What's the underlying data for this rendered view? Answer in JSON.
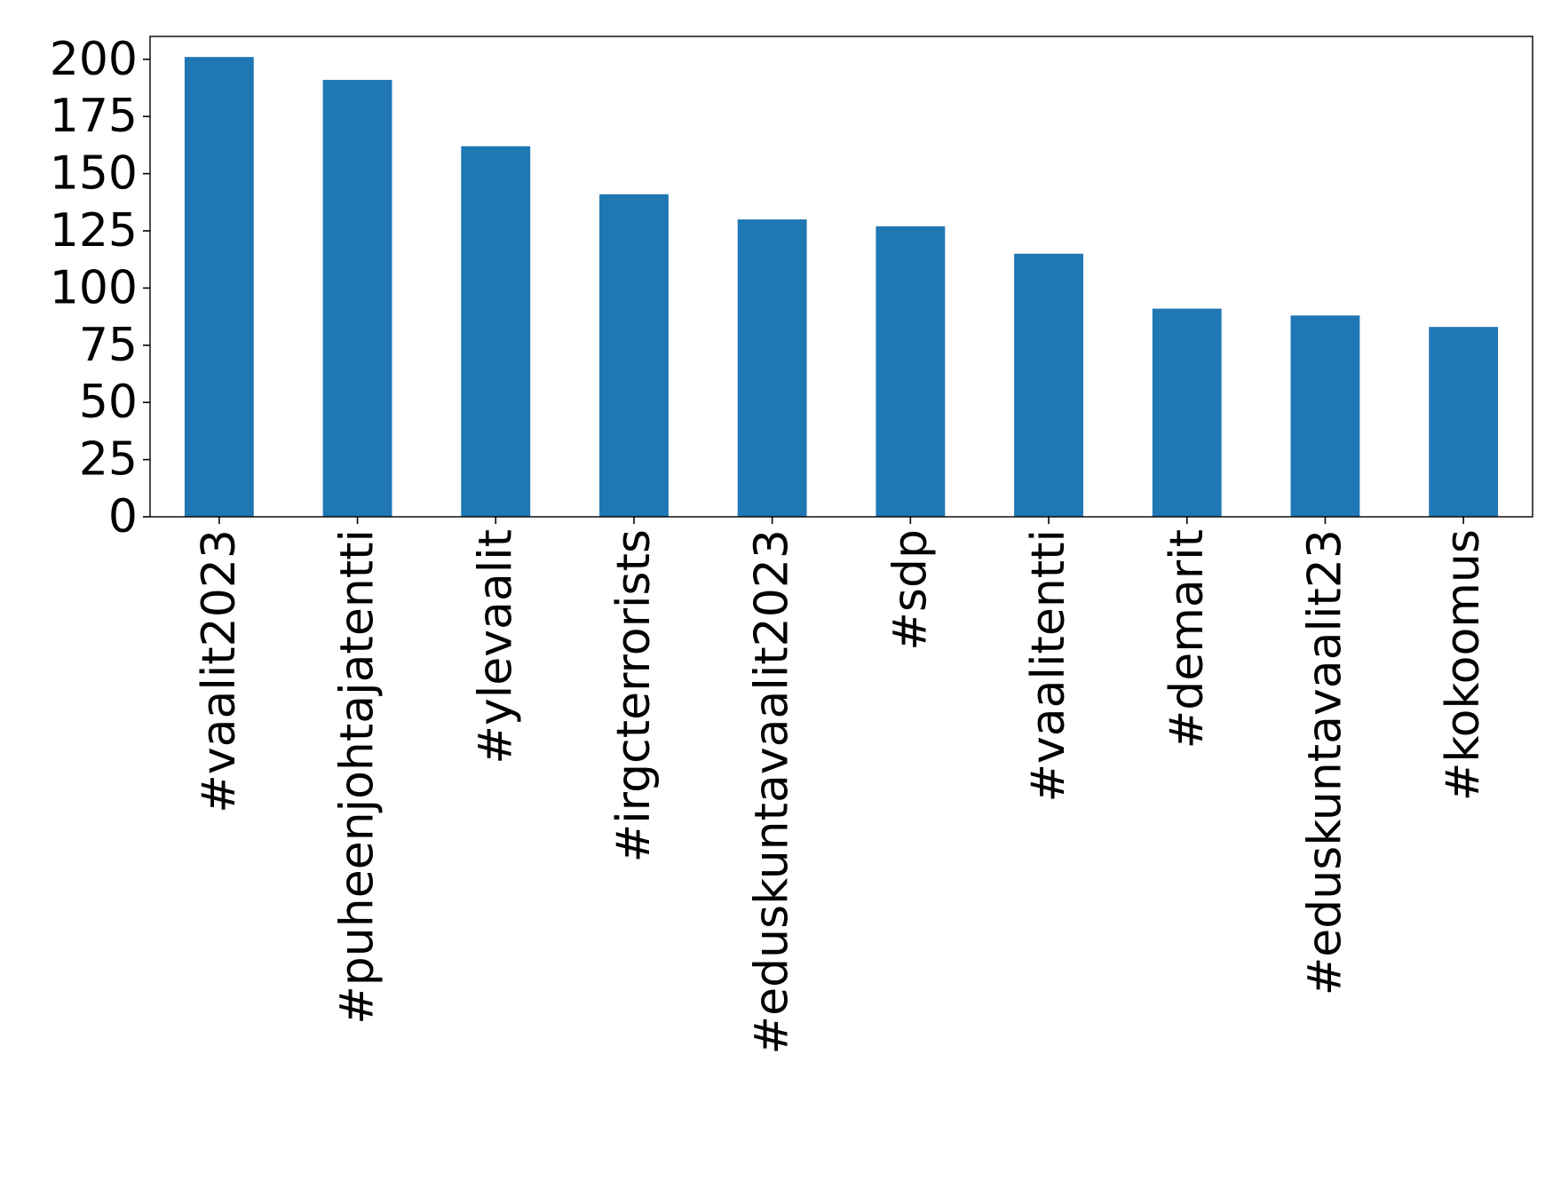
{
  "chart_data": {
    "type": "bar",
    "categories": [
      "#vaalit2023",
      "#puheenjohtajatentti",
      "#ylevaalit",
      "#irgcterrorists",
      "#eduskuntavaalit2023",
      "#sdp",
      "#vaalitentti",
      "#demarit",
      "#eduskuntavaalit23",
      "#kokoomus"
    ],
    "values": [
      201,
      191,
      162,
      141,
      130,
      127,
      115,
      91,
      88,
      83
    ],
    "title": "",
    "xlabel": "",
    "ylabel": "",
    "ylim": [
      0,
      210
    ],
    "yticks": [
      0,
      25,
      50,
      75,
      100,
      125,
      150,
      175,
      200
    ],
    "grid": false,
    "legend": "none",
    "bar_color": "#1f77b4"
  }
}
